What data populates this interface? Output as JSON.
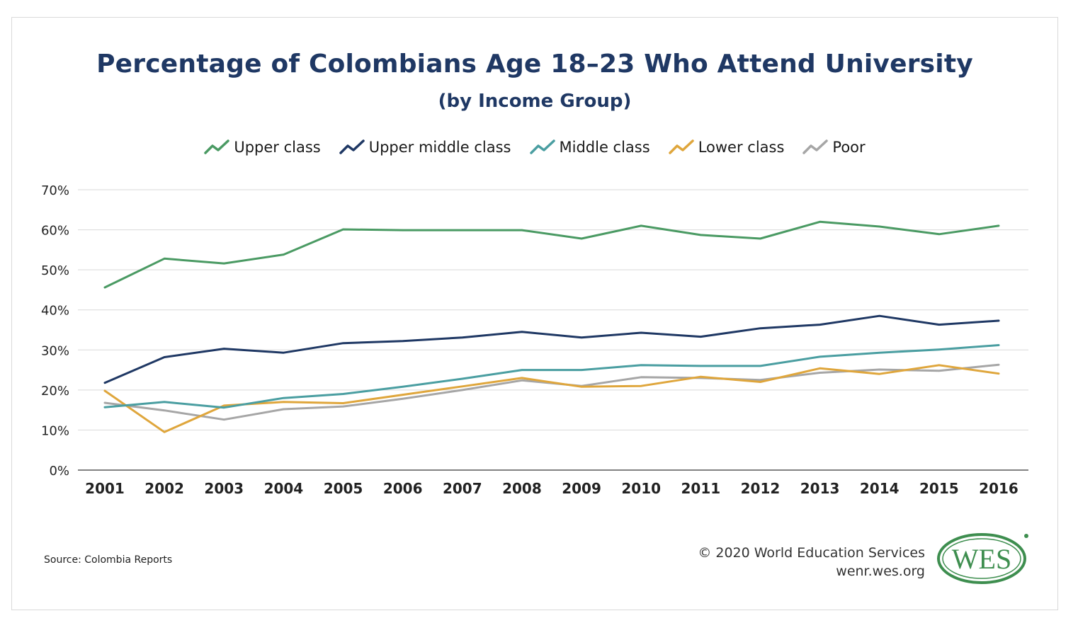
{
  "header": {
    "title": "Percentage of Colombians Age 18–23 Who Attend University",
    "subtitle": "(by Income Group)"
  },
  "footer": {
    "source": "Source: Colombia Reports",
    "copyright": "© 2020 World Education Services",
    "website": "wenr.wes.org",
    "logo_text": "WES"
  },
  "colors": {
    "title": "#1f3864",
    "grid": "#d9d9d9",
    "axis": "#595959",
    "logo": "#3e8e4f"
  },
  "chart_data": {
    "type": "line",
    "title": "Percentage of Colombians Age 18–23 Who Attend University",
    "subtitle": "(by Income Group)",
    "x": [
      "2001",
      "2002",
      "2003",
      "2004",
      "2005",
      "2006",
      "2007",
      "2008",
      "2009",
      "2010",
      "2011",
      "2012",
      "2013",
      "2014",
      "2015",
      "2016"
    ],
    "ylim": [
      0,
      70
    ],
    "yticks": [
      0,
      10,
      20,
      30,
      40,
      50,
      60,
      70
    ],
    "ytick_labels": [
      "0%",
      "10%",
      "20%",
      "30%",
      "40%",
      "50%",
      "60%",
      "70%"
    ],
    "grid": true,
    "legend_position": "top-center",
    "series": [
      {
        "name": "Upper class",
        "color": "#4a9a63",
        "values": [
          45.6,
          52.8,
          51.6,
          53.8,
          60.1,
          59.9,
          59.9,
          59.9,
          57.8,
          61.0,
          58.7,
          57.8,
          62.0,
          60.8,
          58.9,
          61.0
        ]
      },
      {
        "name": "Upper middle class",
        "color": "#1f3864",
        "values": [
          21.8,
          28.2,
          30.3,
          29.3,
          31.7,
          32.2,
          33.1,
          34.5,
          33.1,
          34.3,
          33.3,
          35.4,
          36.3,
          38.5,
          36.3,
          37.3
        ]
      },
      {
        "name": "Middle class",
        "color": "#4a9ea1",
        "values": [
          15.7,
          17.0,
          15.6,
          18.0,
          19.0,
          20.8,
          22.8,
          25.0,
          25.0,
          26.2,
          26.0,
          26.0,
          28.3,
          29.3,
          30.1,
          31.2
        ]
      },
      {
        "name": "Lower class",
        "color": "#dfa63c",
        "values": [
          19.8,
          9.5,
          16.1,
          17.0,
          16.7,
          18.8,
          20.9,
          23.0,
          20.8,
          21.0,
          23.3,
          22.0,
          25.4,
          24.0,
          26.2,
          24.1
        ]
      },
      {
        "name": "Poor",
        "color": "#a6a6a6",
        "values": [
          16.8,
          14.9,
          12.6,
          15.2,
          15.9,
          17.8,
          20.0,
          22.4,
          21.0,
          23.2,
          23.0,
          22.5,
          24.3,
          25.1,
          24.8,
          26.3
        ]
      }
    ]
  }
}
